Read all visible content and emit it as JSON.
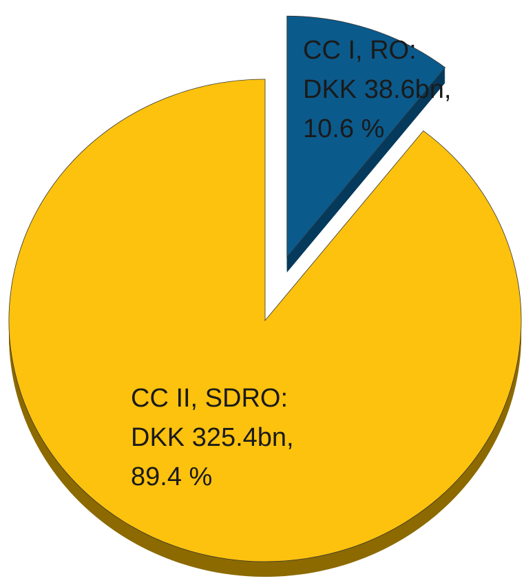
{
  "chart_data": {
    "type": "pie",
    "categories": [
      "CC I, RO:",
      "CC II, SDRO:"
    ],
    "amount_labels": [
      "DKK 38.6bn,",
      "DKK 325.4bn,"
    ],
    "values": [
      10.6,
      89.4
    ],
    "value_labels": [
      "10.6 %",
      "89.4 %"
    ],
    "colors": [
      "#0b5a8c",
      "#fdc20e"
    ],
    "side_colors": [
      "#053a5c",
      "#8c6a00"
    ],
    "explode": [
      true,
      false
    ]
  }
}
